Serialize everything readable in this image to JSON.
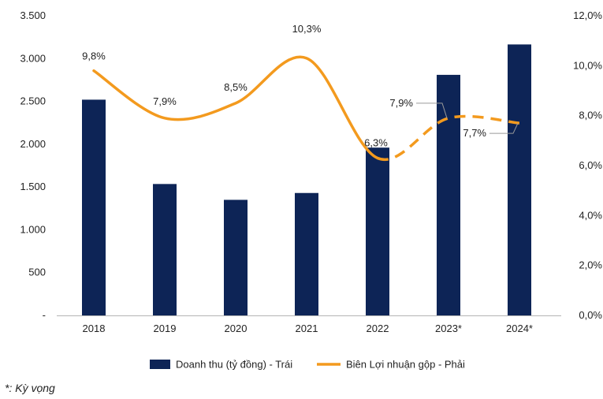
{
  "chart_data": {
    "type": "bar",
    "categories": [
      "2018",
      "2019",
      "2020",
      "2021",
      "2022",
      "2023*",
      "2024*"
    ],
    "series": [
      {
        "name": "Doanh thu (tỷ đồng) - Trái",
        "type": "bar",
        "axis": "left",
        "values": [
          2520,
          1535,
          1350,
          1430,
          1960,
          2810,
          3165
        ],
        "color": "#0d2456"
      },
      {
        "name": "Biên Lợi nhuận gộp - Phải",
        "type": "line",
        "axis": "right",
        "values": [
          9.8,
          7.9,
          8.5,
          10.3,
          6.3,
          7.9,
          7.7
        ],
        "labels": [
          "9,8%",
          "7,9%",
          "8,5%",
          "10,3%",
          "6,3%",
          "7,9%",
          "7,7%"
        ],
        "dashed_from_index": 4,
        "color": "#f39a1e"
      }
    ],
    "y_left": {
      "range": [
        0,
        3500
      ],
      "ticks": [
        0,
        500,
        1000,
        1500,
        2000,
        2500,
        3000,
        3500
      ],
      "tick_labels": [
        "-",
        "500",
        "1.000",
        "1.500",
        "2.000",
        "2.500",
        "3.000",
        "3.500"
      ]
    },
    "y_right": {
      "range": [
        0,
        12
      ],
      "ticks": [
        0,
        2,
        4,
        6,
        8,
        10,
        12
      ],
      "tick_labels": [
        "0,0%",
        "2,0%",
        "4,0%",
        "6,0%",
        "8,0%",
        "10,0%",
        "12,0%"
      ]
    },
    "grid": false,
    "legend_position": "bottom"
  },
  "footnote": "*: Kỳ vọng"
}
